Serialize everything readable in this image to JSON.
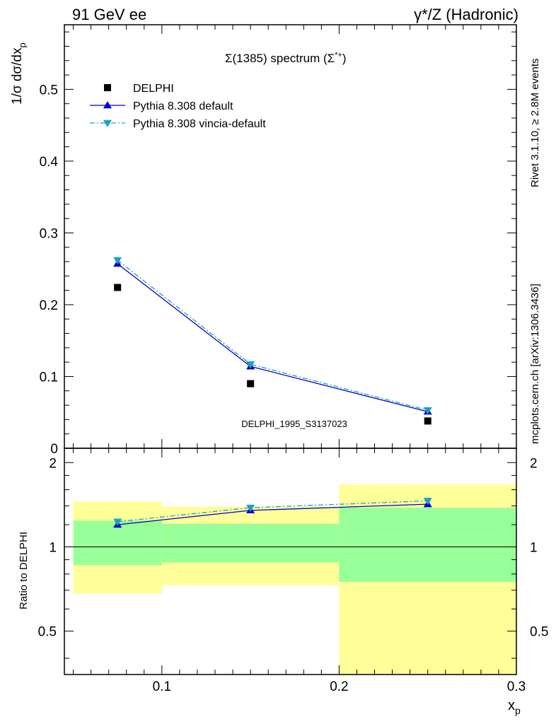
{
  "header": {
    "left": "91 GeV ee",
    "right": "γ*/Z (Hadronic)"
  },
  "side_text": {
    "rivet": "Rivet 3.1.10, ≥ 2.8M events",
    "mcplots": "mcplots.cern.ch [arXiv:1306.3436]"
  },
  "watermark": "DELPHI_1995_S3137023",
  "chart_data": [
    {
      "type": "scatter",
      "panel": "main",
      "title": "Σ(1385) spectrum (Σ*+)",
      "title_parts": {
        "main": "Σ(1385) spectrum (Σ",
        "sup": "*+",
        "close": ")"
      },
      "ylabel": "1/σ dσ/dx_p",
      "ylabel_parts": {
        "main": "1/σ dσ/dx",
        "sub": "p"
      },
      "xlim": [
        0.045,
        0.3
      ],
      "ylim": [
        0,
        0.59
      ],
      "yticks": [
        0,
        0.1,
        0.2,
        0.3,
        0.4,
        0.5
      ],
      "ytick_labels": [
        "0",
        "0.1",
        "0.2",
        "0.3",
        "0.4",
        "0.5"
      ],
      "legend_position": "top-left",
      "series": [
        {
          "name": "DELPHI",
          "style": "data",
          "color": "#000000",
          "marker": "square",
          "x": [
            0.075,
            0.15,
            0.25
          ],
          "values": [
            0.224,
            0.09,
            0.038
          ]
        },
        {
          "name": "Pythia 8.308 default",
          "style": "solid",
          "color": "#0000cc",
          "marker": "triangle-up",
          "x": [
            0.075,
            0.15,
            0.25
          ],
          "values": [
            0.257,
            0.114,
            0.051
          ]
        },
        {
          "name": "Pythia 8.308 vincia-default",
          "style": "dashdot",
          "color": "#1e9fc6",
          "marker": "triangle-down",
          "x": [
            0.075,
            0.15,
            0.25
          ],
          "values": [
            0.262,
            0.117,
            0.053
          ]
        }
      ]
    },
    {
      "type": "scatter",
      "panel": "ratio",
      "ylabel": "Ratio to DELPHI",
      "xlabel": "x_p",
      "xlabel_parts": {
        "main": "x",
        "sub": "p"
      },
      "xlim": [
        0.045,
        0.3
      ],
      "ylim": [
        0.35,
        2.25
      ],
      "xticks": [
        0.1,
        0.2,
        0.3
      ],
      "xtick_labels": [
        "0.1",
        "0.2",
        "0.3"
      ],
      "yticks": [
        0.5,
        1,
        2
      ],
      "ytick_labels": [
        "0.5",
        "1",
        "2"
      ],
      "uncertainty_bands": [
        {
          "x0": 0.05,
          "x1": 0.1,
          "inner": [
            0.86,
            1.24
          ],
          "outer": [
            0.68,
            1.45
          ]
        },
        {
          "x0": 0.1,
          "x1": 0.2,
          "inner": [
            0.88,
            1.21
          ],
          "outer": [
            0.73,
            1.39
          ]
        },
        {
          "x0": 0.2,
          "x1": 0.3,
          "inner": [
            0.75,
            1.38
          ],
          "outer": [
            0.35,
            1.67
          ]
        }
      ],
      "series": [
        {
          "name": "Pythia 8.308 default",
          "style": "solid",
          "color": "#0000cc",
          "marker": "triangle-up",
          "x": [
            0.075,
            0.15,
            0.25
          ],
          "values": [
            1.2,
            1.35,
            1.42
          ]
        },
        {
          "name": "Pythia 8.308 vincia-default",
          "style": "dashdot",
          "color": "#1e9fc6",
          "marker": "triangle-down",
          "x": [
            0.075,
            0.15,
            0.25
          ],
          "values": [
            1.23,
            1.38,
            1.46
          ]
        }
      ]
    }
  ],
  "colors": {
    "band_inner": "#99ff99",
    "band_outer": "#ffff99",
    "side_text": "#808080",
    "watermark": "#999999"
  }
}
